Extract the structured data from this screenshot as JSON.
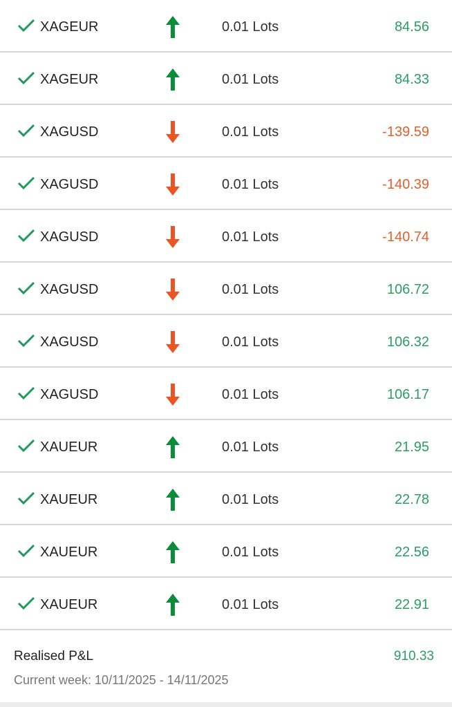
{
  "colors": {
    "profit": "#2a9d64",
    "loss": "#e0612c",
    "arrow_buy": "#0b8c3a",
    "arrow_sell": "#ea5526",
    "check": "#1f9a5a"
  },
  "trades": [
    {
      "symbol": "XAGEUR",
      "direction": "buy",
      "volume": "0.01 Lots",
      "pnl": "84.56",
      "positive": true
    },
    {
      "symbol": "XAGEUR",
      "direction": "buy",
      "volume": "0.01 Lots",
      "pnl": "84.33",
      "positive": true
    },
    {
      "symbol": "XAGUSD",
      "direction": "sell",
      "volume": "0.01 Lots",
      "pnl": "-139.59",
      "positive": false
    },
    {
      "symbol": "XAGUSD",
      "direction": "sell",
      "volume": "0.01 Lots",
      "pnl": "-140.39",
      "positive": false
    },
    {
      "symbol": "XAGUSD",
      "direction": "sell",
      "volume": "0.01 Lots",
      "pnl": "-140.74",
      "positive": false
    },
    {
      "symbol": "XAGUSD",
      "direction": "sell",
      "volume": "0.01 Lots",
      "pnl": "106.72",
      "positive": true
    },
    {
      "symbol": "XAGUSD",
      "direction": "sell",
      "volume": "0.01 Lots",
      "pnl": "106.32",
      "positive": true
    },
    {
      "symbol": "XAGUSD",
      "direction": "sell",
      "volume": "0.01 Lots",
      "pnl": "106.17",
      "positive": true
    },
    {
      "symbol": "XAUEUR",
      "direction": "buy",
      "volume": "0.01 Lots",
      "pnl": "21.95",
      "positive": true
    },
    {
      "symbol": "XAUEUR",
      "direction": "buy",
      "volume": "0.01 Lots",
      "pnl": "22.78",
      "positive": true
    },
    {
      "symbol": "XAUEUR",
      "direction": "buy",
      "volume": "0.01 Lots",
      "pnl": "22.56",
      "positive": true
    },
    {
      "symbol": "XAUEUR",
      "direction": "buy",
      "volume": "0.01 Lots",
      "pnl": "22.91",
      "positive": true
    }
  ],
  "footer": {
    "label": "Realised P&L",
    "value": "910.33",
    "week": "Current week: 10/11/2025 - 14/11/2025"
  }
}
